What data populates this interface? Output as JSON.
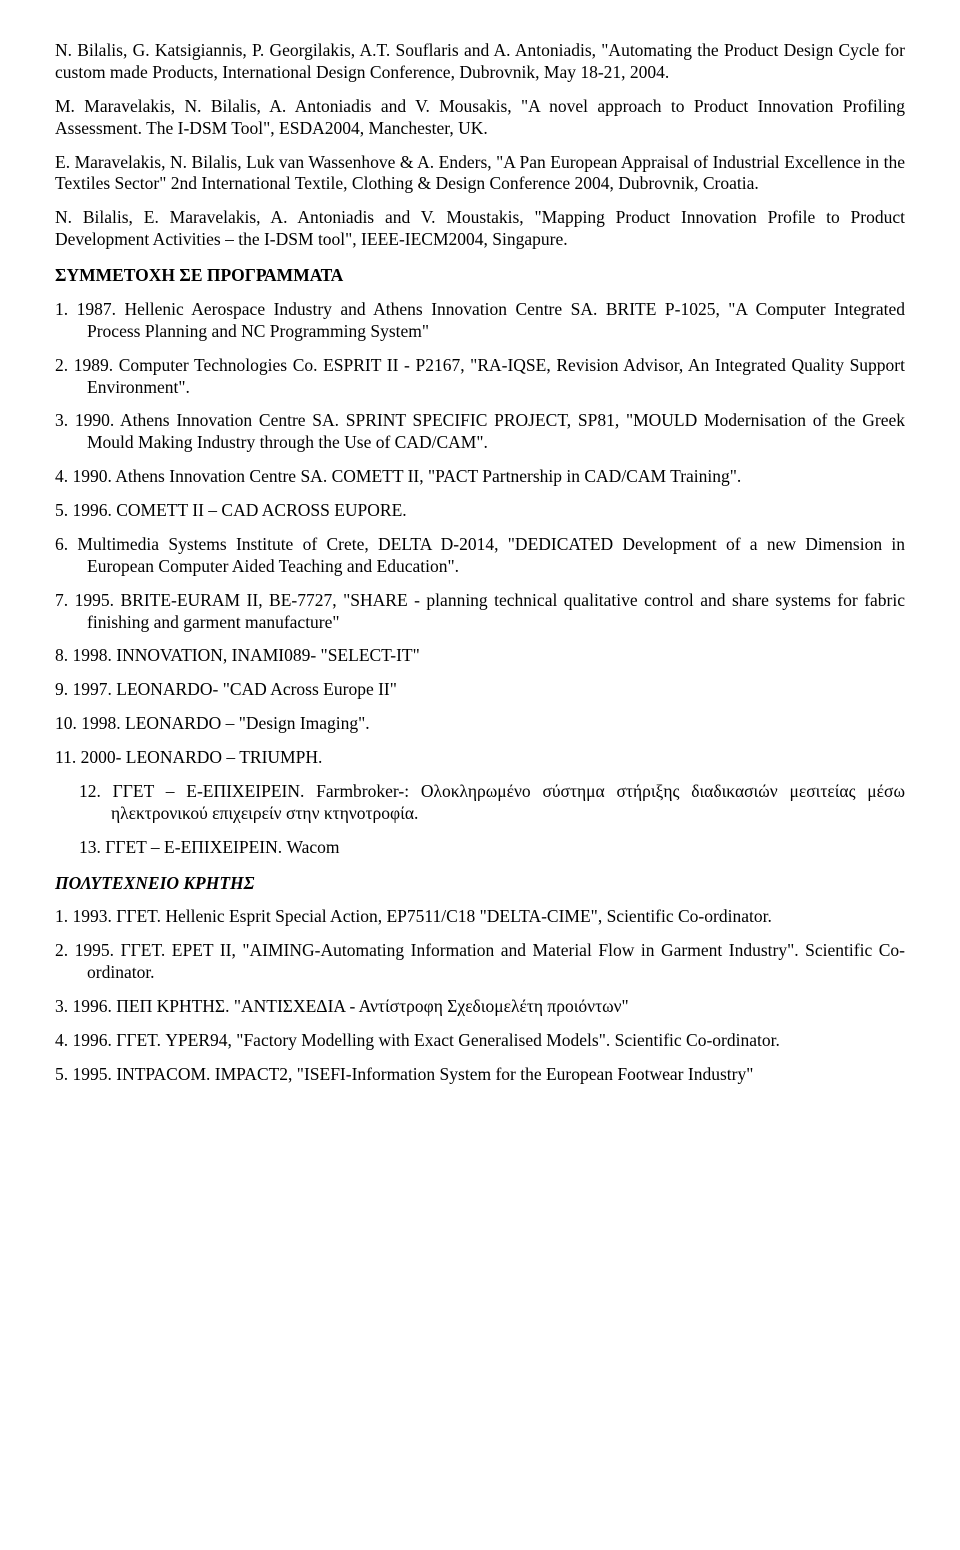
{
  "refs": [
    "N. Bilalis, G. Katsigiannis, P. Georgilakis, A.T. Souflaris and A. Antoniadis, \"Automating the Product Design Cycle for custom made Products, International Design Conference, Dubrovnik, May 18-21, 2004.",
    "M. Maravelakis, N. Bilalis, A. Antoniadis and V. Mousakis, \"A novel approach to Product Innovation Profiling Assessment. The I-DSM Tool\", ESDA2004, Manchester, UK.",
    "E. Maravelakis, N. Bilalis, Luk van Wassenhove & A. Enders, \"A Pan  European Appraisal of Industrial Excellence in the Textiles Sector\" 2nd International Textile, Clothing & Design Conference 2004, Dubrovnik, Croatia.",
    "N. Bilalis, E. Maravelakis, A. Antoniadis and V. Moustakis, \"Mapping Product Innovation Profile to Product Development Activities – the I-DSM tool\", IEEE-IECM2004, Singapure."
  ],
  "sectionA": "ΣΥΜΜΕΤΟΧΗ ΣΕ ΠΡΟΓΡΑΜΜΑΤΑ",
  "progs": [
    "1.   1987. Hellenic Aerospace Industry and Athens Innovation Centre SA. BRITE P-1025, \"A Computer Integrated Process Planning and NC Programming System\"",
    "2.   1989. Computer Technologies Co. ESPRIT II - P2167, \"RA-IQSE, Revision Advisor, An Integrated Quality Support Environment\".",
    "3.   1990. Athens Innovation Centre SA. SPRINT SPECIFIC PROJECT, SP81, \"MOULD Modernisation of the Greek Mould Making Industry through the Use of CAD/CAM\".",
    "4.   1990. Athens Innovation Centre SA. COMETT II, \"PACT Partnership in CAD/CAM Training\".",
    "5.    1996. COMETT II – CAD ACROSS EUPORE.",
    "6.    Multimedia Systems Institute of Crete, DELTA D-2014, \"DEDICATED Development of a new Dimension in European Computer Aided Teaching and Education\".",
    "7.   1995. BRITE-EURAM II, BE-7727, \"SHARE - planning technical qualitative control and share systems for fabric finishing and garment manufacture\"",
    "8.    1998. INNOVATION, INAMI089- \"SELECT-IT\"",
    "9.    1997. LEONARDO- \"CAD Across Europe II\"",
    "10.  1998. LEONARDO – \"Design Imaging\".",
    "11.  2000- LEONARDO – TRIUMPH.",
    "12. ΓΓΕΤ – Ε-ΕΠΙΧΕΙΡΕΙΝ. Farmbroker-: Ολοκληρωμένο σύστημα στήριξης διαδικασιών μεσιτείας μέσω ηλεκτρονικού επιχειρείν στην κτηνοτροφία.",
    "13. ΓΓΕΤ – Ε-ΕΠΙΧΕΙΡΕΙΝ. Wacom"
  ],
  "sectionB": "ΠΟΛΥΤΕΧΝΕΙΟ ΚΡΗΤΗΣ",
  "poly": [
    "1.   1993. ΓΓΕΤ. Hellenic Esprit Special Action, EP7511/C18 \"DELTA-CIME\", Scientific Co-ordinator.",
    "2.   1995. ΓΓΕΤ. EPET II, \"AIMING-Automating Information and Material Flow in Garment Industry\". Scientific Co-ordinator.",
    "3.    1996. ΠΕΠ ΚΡΗΤΗΣ. \"ΑΝΤΙΣΧΕΔΙΑ - Αντίστροφη Σχεδιομελέτη προιόντων\"",
    "4.   1996. ΓΓΕΤ. YPER94, \"Factory Modelling with Exact Generalised Models\". Scientific Co-ordinator.",
    "5.   1995. INTPACOM. IMPACT2, \"ISEFI-Information System for the European Footwear Industry\""
  ]
}
